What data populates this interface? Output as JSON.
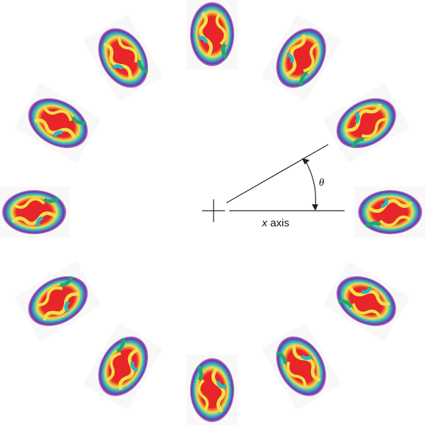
{
  "labels": {
    "angle": "θ",
    "axis_var": "x",
    "axis_word": "axis"
  }
}
